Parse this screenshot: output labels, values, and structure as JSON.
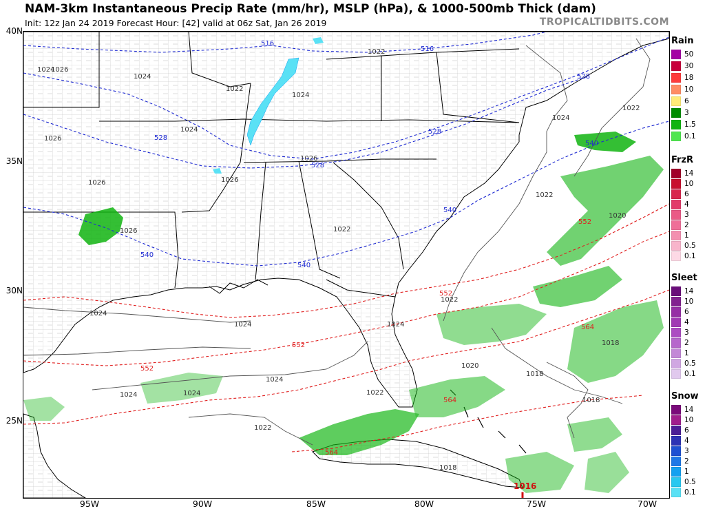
{
  "header": {
    "title": "NAM-3km Instantaneous Precip Rate (mm/hr), MSLP (hPa), & 1000-500mb Thick (dam)",
    "subtitle": "Init: 12z Jan 24 2019   Forecast Hour: [42]   valid at 06z Sat, Jan 26 2019",
    "brand": "TROPICALTIDBITS.COM"
  },
  "axes": {
    "lat_labels": [
      "40N",
      "35N",
      "30N",
      "25N"
    ],
    "lon_labels": [
      "95W",
      "90W",
      "85W",
      "80W",
      "75W",
      "70W"
    ]
  },
  "map_labels": {
    "isobars": [
      "1024",
      "1026",
      "1024",
      "1022",
      "1024",
      "1026",
      "1026",
      "1026",
      "1024",
      "1022",
      "1022",
      "1024",
      "1026",
      "1026",
      "1022",
      "1024",
      "1022",
      "1024",
      "1024",
      "1024",
      "1022",
      "1022",
      "1024",
      "1024",
      "1020",
      "1022",
      "1020",
      "1018",
      "1018",
      "1018",
      "1018",
      "1016"
    ],
    "thickness_blue": [
      "516",
      "516",
      "528",
      "528",
      "528",
      "528",
      "540",
      "540",
      "540",
      "540"
    ],
    "thickness_red": [
      "552",
      "552",
      "552",
      "552",
      "564",
      "564",
      "564"
    ],
    "low_center": "L"
  },
  "legend": {
    "rain": {
      "title": "Rain",
      "levels": [
        "50",
        "30",
        "18",
        "10",
        "6",
        "3",
        "1.5",
        "0.1"
      ],
      "colors": [
        "#a400a4",
        "#c8003c",
        "#ff3c3c",
        "#ff8c64",
        "#ffeb78",
        "#008c00",
        "#10b410",
        "#50e650",
        "#dcfadc"
      ]
    },
    "frzr": {
      "title": "FrzR",
      "levels": [
        "14",
        "10",
        "6",
        "4",
        "3",
        "2",
        "1",
        "0.5",
        "0.1"
      ],
      "colors": [
        "#a0002a",
        "#c8102e",
        "#d8274d",
        "#e23b6a",
        "#ea5a86",
        "#ef6f98",
        "#f38fb0",
        "#f8b4cb",
        "#fdd9e5",
        "#fff0f5"
      ]
    },
    "sleet": {
      "title": "Sleet",
      "levels": [
        "14",
        "10",
        "6",
        "4",
        "3",
        "2",
        "1",
        "0.5",
        "0.1"
      ],
      "colors": [
        "#6a0e7a",
        "#82228f",
        "#962fa5",
        "#a13ab4",
        "#ac4bc2",
        "#b666cc",
        "#c388d7",
        "#d0a7e2",
        "#e1c9ee",
        "#f3ebf8"
      ]
    },
    "snow": {
      "title": "Snow",
      "levels": [
        "14",
        "10",
        "6",
        "4",
        "3",
        "2",
        "1",
        "0.5",
        "0.1"
      ],
      "colors": [
        "#7a0a7a",
        "#a01e8c",
        "#4b1e96",
        "#2d32b4",
        "#1e50d2",
        "#1e78e6",
        "#14a0f0",
        "#28c8f0",
        "#5ae1f5",
        "#aef0fa"
      ]
    }
  }
}
